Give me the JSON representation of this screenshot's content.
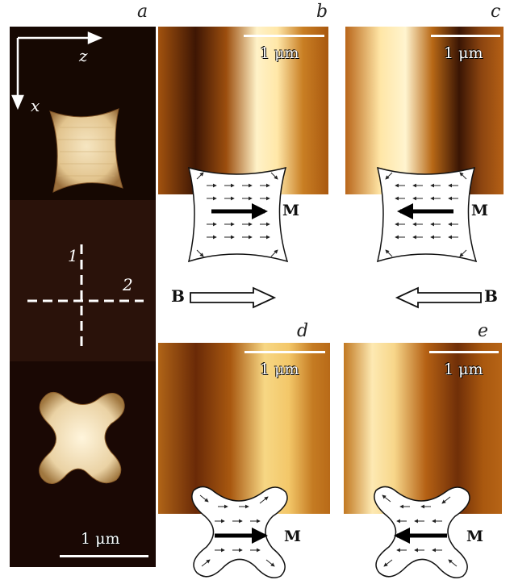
{
  "panels": {
    "a": {
      "label": "a",
      "scale": "1 μm",
      "axis_z": "z",
      "axis_x": "x",
      "cross_1": "1",
      "cross_2": "2"
    },
    "b": {
      "label": "b",
      "scale": "1 μm",
      "magnet_label": "M"
    },
    "c": {
      "label": "c",
      "scale": "1 μm",
      "magnet_label": "M"
    },
    "d": {
      "label": "d",
      "scale": "1 μm",
      "magnet_label": "M"
    },
    "e": {
      "label": "e",
      "scale": "1 μm",
      "magnet_label": "M"
    }
  },
  "field": {
    "left_label": "B",
    "right_label": "B"
  }
}
